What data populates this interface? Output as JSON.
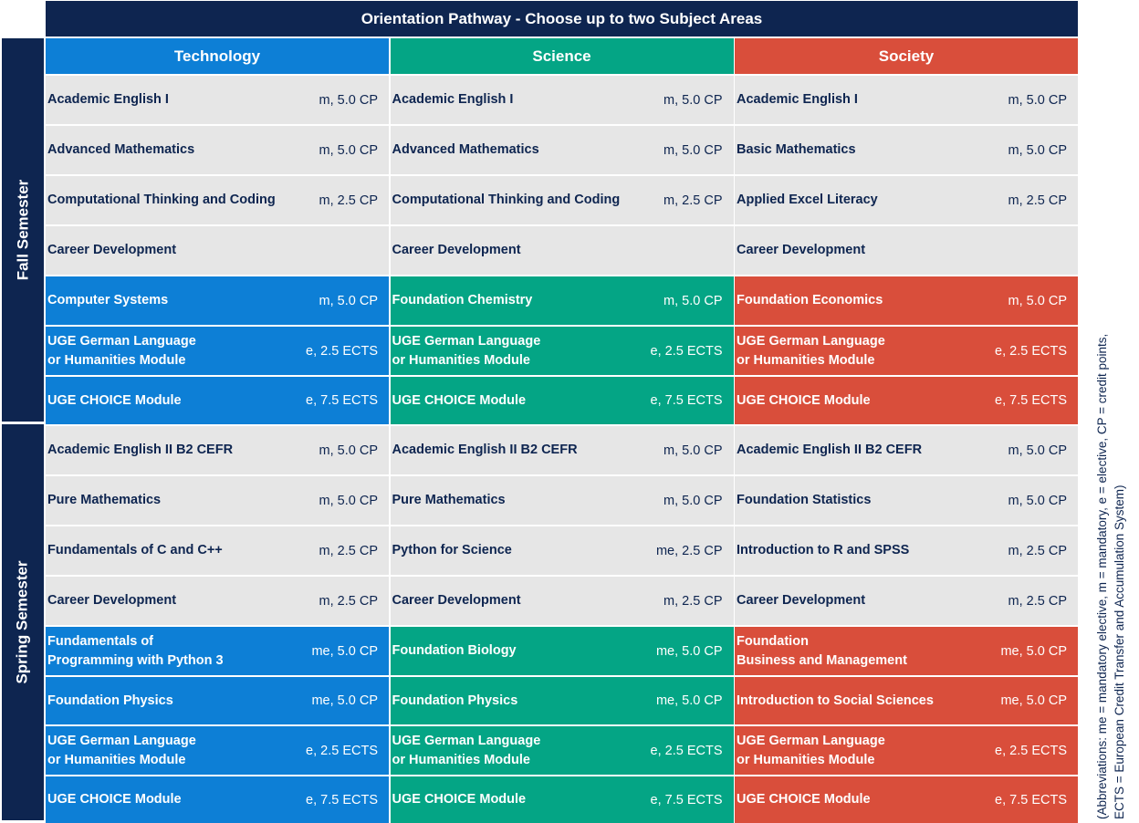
{
  "title": "Orientation Pathway - Choose up to two Subject Areas",
  "semesters": {
    "fall": "Fall Semester",
    "spring": "Spring Semester"
  },
  "columns": [
    {
      "header": "Technology",
      "theme": "blue",
      "color": "#0d7fd6",
      "rows": [
        {
          "name": "Academic English I",
          "credit": "m, 5.0 CP",
          "highlight": false
        },
        {
          "name": "Advanced Mathematics",
          "credit": "m, 5.0 CP",
          "highlight": false
        },
        {
          "name": "Computational Thinking and Coding",
          "credit": "m, 2.5 CP",
          "highlight": false
        },
        {
          "name": "Career Development",
          "credit": "",
          "highlight": false
        },
        {
          "name": "Computer Systems",
          "credit": "m, 5.0 CP",
          "highlight": true
        },
        {
          "name": "UGE German Language\nor Humanities Module",
          "credit": "e, 2.5 ECTS",
          "highlight": true
        },
        {
          "name": "UGE CHOICE Module",
          "credit": "e, 7.5 ECTS",
          "highlight": true
        },
        {
          "name": "Academic English II B2 CEFR",
          "credit": "m, 5.0 CP",
          "highlight": false
        },
        {
          "name": "Pure Mathematics",
          "credit": "m, 5.0 CP",
          "highlight": false
        },
        {
          "name": "Fundamentals of C and C++",
          "credit": "m, 2.5 CP",
          "highlight": false
        },
        {
          "name": "Career Development",
          "credit": "m, 2.5 CP",
          "highlight": false
        },
        {
          "name": "Fundamentals of\nProgramming with Python 3",
          "credit": "me, 5.0 CP",
          "highlight": true
        },
        {
          "name": "Foundation Physics",
          "credit": "me, 5.0 CP",
          "highlight": true
        },
        {
          "name": "UGE German Language\nor Humanities Module",
          "credit": "e, 2.5 ECTS",
          "highlight": true
        },
        {
          "name": "UGE CHOICE Module",
          "credit": "e, 7.5 ECTS",
          "highlight": true
        }
      ]
    },
    {
      "header": "Science",
      "theme": "green",
      "color": "#04a585",
      "rows": [
        {
          "name": "Academic English I",
          "credit": "m, 5.0 CP",
          "highlight": false
        },
        {
          "name": "Advanced Mathematics",
          "credit": "m, 5.0 CP",
          "highlight": false
        },
        {
          "name": "Computational Thinking and Coding",
          "credit": "m, 2.5 CP",
          "highlight": false
        },
        {
          "name": "Career Development",
          "credit": "",
          "highlight": false
        },
        {
          "name": "Foundation Chemistry",
          "credit": "m, 5.0 CP",
          "highlight": true
        },
        {
          "name": "UGE German Language\nor Humanities Module",
          "credit": "e, 2.5 ECTS",
          "highlight": true
        },
        {
          "name": "UGE CHOICE Module",
          "credit": "e, 7.5 ECTS",
          "highlight": true
        },
        {
          "name": "Academic English II B2 CEFR",
          "credit": "m, 5.0 CP",
          "highlight": false
        },
        {
          "name": "Pure Mathematics",
          "credit": "m, 5.0 CP",
          "highlight": false
        },
        {
          "name": "Python for Science",
          "credit": "me, 2.5 CP",
          "highlight": false
        },
        {
          "name": "Career Development",
          "credit": "m, 2.5 CP",
          "highlight": false
        },
        {
          "name": "Foundation Biology",
          "credit": "me, 5.0 CP",
          "highlight": true
        },
        {
          "name": "Foundation Physics",
          "credit": "me, 5.0 CP",
          "highlight": true
        },
        {
          "name": "UGE German Language\nor Humanities Module",
          "credit": "e, 2.5 ECTS",
          "highlight": true
        },
        {
          "name": "UGE CHOICE Module",
          "credit": "e, 7.5 ECTS",
          "highlight": true
        }
      ]
    },
    {
      "header": "Society",
      "theme": "red",
      "color": "#d94e3b",
      "rows": [
        {
          "name": "Academic English I",
          "credit": "m, 5.0 CP",
          "highlight": false
        },
        {
          "name": "Basic Mathematics",
          "credit": "m, 5.0 CP",
          "highlight": false
        },
        {
          "name": "Applied Excel Literacy",
          "credit": "m, 2.5 CP",
          "highlight": false
        },
        {
          "name": "Career Development",
          "credit": "",
          "highlight": false
        },
        {
          "name": "Foundation Economics",
          "credit": "m, 5.0 CP",
          "highlight": true
        },
        {
          "name": "UGE German Language\nor Humanities Module",
          "credit": "e, 2.5 ECTS",
          "highlight": true
        },
        {
          "name": "UGE CHOICE Module",
          "credit": "e, 7.5 ECTS",
          "highlight": true
        },
        {
          "name": "Academic English II B2 CEFR",
          "credit": "m, 5.0 CP",
          "highlight": false
        },
        {
          "name": "Foundation Statistics",
          "credit": "m, 5.0 CP",
          "highlight": false
        },
        {
          "name": "Introduction to R and SPSS",
          "credit": "m, 2.5 CP",
          "highlight": false
        },
        {
          "name": "Career Development",
          "credit": "m, 2.5 CP",
          "highlight": false
        },
        {
          "name": "Foundation\nBusiness and Management",
          "credit": "me, 5.0 CP",
          "highlight": true
        },
        {
          "name": "Introduction to Social Sciences",
          "credit": "me, 5.0 CP",
          "highlight": true
        },
        {
          "name": "UGE German Language\nor Humanities Module",
          "credit": "e, 2.5 ECTS",
          "highlight": true
        },
        {
          "name": "UGE CHOICE Module",
          "credit": "e, 7.5 ECTS",
          "highlight": true
        }
      ]
    }
  ],
  "abbreviations": {
    "line1": "(Abbreviations: me = mandatory elective, m = mandatory, e = elective, CP = credit points,",
    "line2": "ECTS = European Credit Transfer and Accumulation System)"
  }
}
